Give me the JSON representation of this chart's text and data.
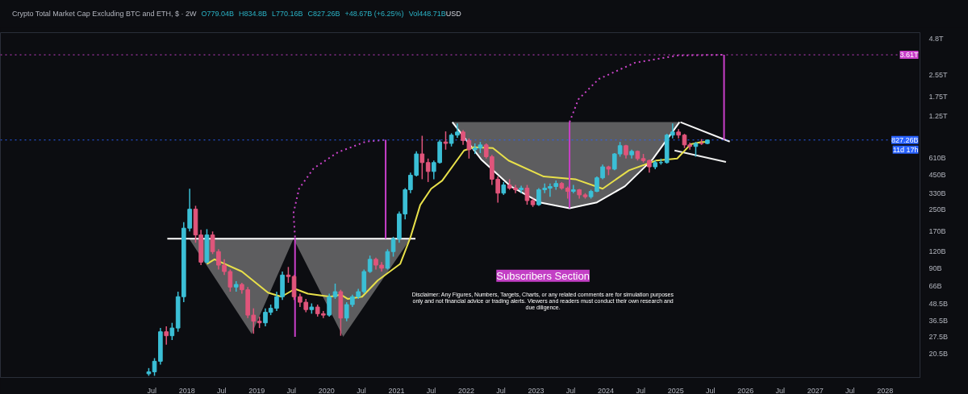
{
  "chart_data": {
    "type": "candlestick",
    "title": "Crypto Total Market Cap Excluding BTC and ETH, $ · 2W",
    "annotations": [
      "O779.04B",
      "H834.8B",
      "L770.16B",
      "C827.26B",
      "+48.67B (+6.25%)",
      "Vol448.71B",
      "USD",
      "11d 17h",
      "Subscribers Section",
      "Disclaimer: Any Figures, Numbers, Targets, Charts, or any related comments are for simulation purposes only and not financial advice or trading alerts. Viewers and readers must conduct their own research and due diligence."
    ],
    "log": true,
    "grid": false,
    "xlim": [
      "2015-05-01",
      "2028-07-01"
    ],
    "ylim": [
      13600000000.0,
      5300000000000.0
    ],
    "xticks": [
      {
        "value": "2017-07",
        "label": "Jul"
      },
      {
        "value": "2018-01",
        "label": "2018"
      },
      {
        "value": "2018-07",
        "label": "Jul"
      },
      {
        "value": "2019-01",
        "label": "2019"
      },
      {
        "value": "2019-07",
        "label": "Jul"
      },
      {
        "value": "2020-01",
        "label": "2020"
      },
      {
        "value": "2020-07",
        "label": "Jul"
      },
      {
        "value": "2021-01",
        "label": "2021"
      },
      {
        "value": "2021-07",
        "label": "Jul"
      },
      {
        "value": "2022-01",
        "label": "2022"
      },
      {
        "value": "2022-07",
        "label": "Jul"
      },
      {
        "value": "2023-01",
        "label": "2023"
      },
      {
        "value": "2023-07",
        "label": "Jul"
      },
      {
        "value": "2024-01",
        "label": "2024"
      },
      {
        "value": "2024-07",
        "label": "Jul"
      },
      {
        "value": "2025-01",
        "label": "2025"
      },
      {
        "value": "2025-07",
        "label": "Jul"
      },
      {
        "value": "2026-01",
        "label": "2026"
      },
      {
        "value": "2026-07",
        "label": "Jul"
      },
      {
        "value": "2027-01",
        "label": "2027"
      },
      {
        "value": "2027-07",
        "label": "Jul"
      },
      {
        "value": "2028-01",
        "label": "2028"
      }
    ],
    "yticks": [
      {
        "value": 4800000000000.0,
        "label": "4.8T"
      },
      {
        "value": 2550000000000.0,
        "label": "2.55T"
      },
      {
        "value": 1750000000000.0,
        "label": "1.75T"
      },
      {
        "value": 1250000000000.0,
        "label": "1.25T"
      },
      {
        "value": 610000000000.0,
        "label": "610B"
      },
      {
        "value": 450000000000.0,
        "label": "450B"
      },
      {
        "value": 330000000000.0,
        "label": "330B"
      },
      {
        "value": 250000000000.0,
        "label": "250B"
      },
      {
        "value": 170000000000.0,
        "label": "170B"
      },
      {
        "value": 120000000000.0,
        "label": "120B"
      },
      {
        "value": 90000000000.0,
        "label": "90B"
      },
      {
        "value": 66000000000.0,
        "label": "66B"
      },
      {
        "value": 48500000000.0,
        "label": "48.5B"
      },
      {
        "value": 36500000000.0,
        "label": "36.5B"
      },
      {
        "value": 27500000000.0,
        "label": "27.5B"
      },
      {
        "value": 20500000000.0,
        "label": "20.5B"
      }
    ],
    "ref_lines": [
      {
        "axis": "y",
        "value": 827260000000.0,
        "label": "827.26B",
        "color": "#2962ff",
        "line_style": "dotted"
      },
      {
        "axis": "y",
        "value": 3610000000000.0,
        "label": "3.61T",
        "color": "#c93fc9",
        "line_style": "dotted"
      }
    ],
    "x": [
      "2017-06-15",
      "2017-07-15",
      "2017-08-15",
      "2017-09-15",
      "2017-10-15",
      "2017-11-15",
      "2017-12-15",
      "2018-01-15",
      "2018-02-15",
      "2018-03-15",
      "2018-04-15",
      "2018-05-15",
      "2018-06-15",
      "2018-07-15",
      "2018-08-15",
      "2018-09-15",
      "2018-10-15",
      "2018-11-15",
      "2018-12-15",
      "2019-01-15",
      "2019-02-15",
      "2019-03-15",
      "2019-04-15",
      "2019-05-15",
      "2019-06-15",
      "2019-07-15",
      "2019-08-15",
      "2019-09-15",
      "2019-10-15",
      "2019-11-15",
      "2019-12-15",
      "2020-01-15",
      "2020-02-15",
      "2020-03-15",
      "2020-04-15",
      "2020-05-15",
      "2020-06-15",
      "2020-07-15",
      "2020-08-15",
      "2020-09-15",
      "2020-10-15",
      "2020-11-15",
      "2020-12-15",
      "2021-01-15",
      "2021-02-15",
      "2021-03-15",
      "2021-04-15",
      "2021-05-15",
      "2021-06-15",
      "2021-07-15",
      "2021-08-15",
      "2021-09-15",
      "2021-10-15",
      "2021-11-15",
      "2021-12-15",
      "2022-01-15",
      "2022-02-15",
      "2022-03-15",
      "2022-04-15",
      "2022-05-15",
      "2022-06-15",
      "2022-07-15",
      "2022-08-15",
      "2022-09-15",
      "2022-10-15",
      "2022-11-15",
      "2022-12-15",
      "2023-01-15",
      "2023-02-15",
      "2023-03-15",
      "2023-04-15",
      "2023-05-15",
      "2023-06-15",
      "2023-07-15",
      "2023-08-15",
      "2023-09-15",
      "2023-10-15",
      "2023-11-15",
      "2023-12-15",
      "2024-01-15",
      "2024-02-15",
      "2024-03-15",
      "2024-04-15",
      "2024-05-15",
      "2024-06-15",
      "2024-07-15",
      "2024-08-15",
      "2024-09-15",
      "2024-10-15",
      "2024-11-15",
      "2024-12-15",
      "2025-01-15",
      "2025-02-15",
      "2025-03-15",
      "2025-04-15",
      "2025-05-15",
      "2025-06-15"
    ],
    "ohlc": [
      [
        14500000000.0,
        16000000000.0,
        14000000000.0,
        15000000000.0
      ],
      [
        15000000000.0,
        19000000000.0,
        14000000000.0,
        18000000000.0
      ],
      [
        18000000000.0,
        32000000000.0,
        17000000000.0,
        30000000000.0
      ],
      [
        30000000000.0,
        33000000000.0,
        24000000000.0,
        28000000000.0
      ],
      [
        28000000000.0,
        35000000000.0,
        26000000000.0,
        32000000000.0
      ],
      [
        32000000000.0,
        60000000000.0,
        30000000000.0,
        55000000000.0
      ],
      [
        55000000000.0,
        200000000000.0,
        50000000000.0,
        180000000000.0
      ],
      [
        180000000000.0,
        356000000000.0,
        170000000000.0,
        250000000000.0
      ],
      [
        250000000000.0,
        265000000000.0,
        140000000000.0,
        160000000000.0
      ],
      [
        160000000000.0,
        175000000000.0,
        95000000000.0,
        100000000000.0
      ],
      [
        100000000000.0,
        177000000000.0,
        98000000000.0,
        160000000000.0
      ],
      [
        160000000000.0,
        170000000000.0,
        115000000000.0,
        120000000000.0
      ],
      [
        120000000000.0,
        125000000000.0,
        88000000000.0,
        95000000000.0
      ],
      [
        95000000000.0,
        105000000000.0,
        80000000000.0,
        85000000000.0
      ],
      [
        85000000000.0,
        88000000000.0,
        60000000000.0,
        65000000000.0
      ],
      [
        65000000000.0,
        72000000000.0,
        60000000000.0,
        68000000000.0
      ],
      [
        68000000000.0,
        70000000000.0,
        58000000000.0,
        62000000000.0
      ],
      [
        62000000000.0,
        65000000000.0,
        38000000000.0,
        40000000000.0
      ],
      [
        40000000000.0,
        45000000000.0,
        29000000000.0,
        36000000000.0
      ],
      [
        36000000000.0,
        39000000000.0,
        32000000000.0,
        35000000000.0
      ],
      [
        35000000000.0,
        45000000000.0,
        33000000000.0,
        42000000000.0
      ],
      [
        42000000000.0,
        48000000000.0,
        40000000000.0,
        45000000000.0
      ],
      [
        45000000000.0,
        60000000000.0,
        43000000000.0,
        55000000000.0
      ],
      [
        55000000000.0,
        85000000000.0,
        52000000000.0,
        80000000000.0
      ],
      [
        80000000000.0,
        92000000000.0,
        70000000000.0,
        78000000000.0
      ],
      [
        78000000000.0,
        80000000000.0,
        52000000000.0,
        55000000000.0
      ],
      [
        55000000000.0,
        58000000000.0,
        46000000000.0,
        50000000000.0
      ],
      [
        50000000000.0,
        53000000000.0,
        42000000000.0,
        44000000000.0
      ],
      [
        44000000000.0,
        49000000000.0,
        41000000000.0,
        46000000000.0
      ],
      [
        46000000000.0,
        48000000000.0,
        39000000000.0,
        41000000000.0
      ],
      [
        41000000000.0,
        43000000000.0,
        38000000000.0,
        40000000000.0
      ],
      [
        40000000000.0,
        58000000000.0,
        39000000000.0,
        55000000000.0
      ],
      [
        55000000000.0,
        69000000000.0,
        53000000000.0,
        60000000000.0
      ],
      [
        60000000000.0,
        62000000000.0,
        28000000000.0,
        38000000000.0
      ],
      [
        38000000000.0,
        50000000000.0,
        36000000000.0,
        48000000000.0
      ],
      [
        48000000000.0,
        57000000000.0,
        46000000000.0,
        55000000000.0
      ],
      [
        55000000000.0,
        63000000000.0,
        53000000000.0,
        60000000000.0
      ],
      [
        60000000000.0,
        88000000000.0,
        58000000000.0,
        85000000000.0
      ],
      [
        85000000000.0,
        112000000000.0,
        83000000000.0,
        105000000000.0
      ],
      [
        105000000000.0,
        108000000000.0,
        88000000000.0,
        95000000000.0
      ],
      [
        95000000000.0,
        100000000000.0,
        85000000000.0,
        90000000000.0
      ],
      [
        90000000000.0,
        125000000000.0,
        88000000000.0,
        120000000000.0
      ],
      [
        120000000000.0,
        155000000000.0,
        110000000000.0,
        150000000000.0
      ],
      [
        150000000000.0,
        240000000000.0,
        140000000000.0,
        230000000000.0
      ],
      [
        230000000000.0,
        360000000000.0,
        210000000000.0,
        350000000000.0
      ],
      [
        350000000000.0,
        470000000000.0,
        330000000000.0,
        450000000000.0
      ],
      [
        450000000000.0,
        680000000000.0,
        440000000000.0,
        650000000000.0
      ],
      [
        650000000000.0,
        890000000000.0,
        420000000000.0,
        560000000000.0
      ],
      [
        560000000000.0,
        600000000000.0,
        400000000000.0,
        480000000000.0
      ],
      [
        480000000000.0,
        580000000000.0,
        420000000000.0,
        560000000000.0
      ],
      [
        560000000000.0,
        830000000000.0,
        550000000000.0,
        800000000000.0
      ],
      [
        800000000000.0,
        960000000000.0,
        700000000000.0,
        780000000000.0
      ],
      [
        780000000000.0,
        930000000000.0,
        740000000000.0,
        900000000000.0
      ],
      [
        900000000000.0,
        1100000000000.0,
        860000000000.0,
        950000000000.0
      ],
      [
        950000000000.0,
        980000000000.0,
        760000000000.0,
        820000000000.0
      ],
      [
        820000000000.0,
        850000000000.0,
        600000000000.0,
        700000000000.0
      ],
      [
        700000000000.0,
        780000000000.0,
        650000000000.0,
        720000000000.0
      ],
      [
        720000000000.0,
        800000000000.0,
        660000000000.0,
        760000000000.0
      ],
      [
        760000000000.0,
        780000000000.0,
        600000000000.0,
        620000000000.0
      ],
      [
        620000000000.0,
        640000000000.0,
        380000000000.0,
        420000000000.0
      ],
      [
        420000000000.0,
        440000000000.0,
        280000000000.0,
        330000000000.0
      ],
      [
        330000000000.0,
        400000000000.0,
        320000000000.0,
        380000000000.0
      ],
      [
        380000000000.0,
        420000000000.0,
        350000000000.0,
        360000000000.0
      ],
      [
        360000000000.0,
        380000000000.0,
        330000000000.0,
        350000000000.0
      ],
      [
        350000000000.0,
        375000000000.0,
        330000000000.0,
        360000000000.0
      ],
      [
        360000000000.0,
        380000000000.0,
        270000000000.0,
        290000000000.0
      ],
      [
        290000000000.0,
        300000000000.0,
        260000000000.0,
        270000000000.0
      ],
      [
        270000000000.0,
        360000000000.0,
        265000000000.0,
        350000000000.0
      ],
      [
        350000000000.0,
        390000000000.0,
        330000000000.0,
        360000000000.0
      ],
      [
        360000000000.0,
        390000000000.0,
        310000000000.0,
        370000000000.0
      ],
      [
        370000000000.0,
        410000000000.0,
        350000000000.0,
        390000000000.0
      ],
      [
        390000000000.0,
        400000000000.0,
        350000000000.0,
        360000000000.0
      ],
      [
        360000000000.0,
        370000000000.0,
        300000000000.0,
        340000000000.0
      ],
      [
        340000000000.0,
        380000000000.0,
        330000000000.0,
        350000000000.0
      ],
      [
        350000000000.0,
        355000000000.0,
        300000000000.0,
        320000000000.0
      ],
      [
        320000000000.0,
        330000000000.0,
        300000000000.0,
        310000000000.0
      ],
      [
        310000000000.0,
        350000000000.0,
        300000000000.0,
        340000000000.0
      ],
      [
        340000000000.0,
        440000000000.0,
        335000000000.0,
        430000000000.0
      ],
      [
        430000000000.0,
        540000000000.0,
        420000000000.0,
        520000000000.0
      ],
      [
        520000000000.0,
        530000000000.0,
        450000000000.0,
        500000000000.0
      ],
      [
        500000000000.0,
        660000000000.0,
        490000000000.0,
        650000000000.0
      ],
      [
        650000000000.0,
        800000000000.0,
        620000000000.0,
        750000000000.0
      ],
      [
        750000000000.0,
        760000000000.0,
        600000000000.0,
        640000000000.0
      ],
      [
        640000000000.0,
        700000000000.0,
        600000000000.0,
        680000000000.0
      ],
      [
        680000000000.0,
        690000000000.0,
        580000000000.0,
        600000000000.0
      ],
      [
        600000000000.0,
        650000000000.0,
        560000000000.0,
        580000000000.0
      ],
      [
        580000000000.0,
        590000000000.0,
        470000000000.0,
        520000000000.0
      ],
      [
        520000000000.0,
        580000000000.0,
        500000000000.0,
        560000000000.0
      ],
      [
        560000000000.0,
        600000000000.0,
        540000000000.0,
        560000000000.0
      ],
      [
        560000000000.0,
        920000000000.0,
        550000000000.0,
        900000000000.0
      ],
      [
        900000000000.0,
        1100000000000.0,
        850000000000.0,
        950000000000.0
      ],
      [
        950000000000.0,
        1000000000000.0,
        850000000000.0,
        900000000000.0
      ],
      [
        900000000000.0,
        920000000000.0,
        720000000000.0,
        760000000000.0
      ],
      [
        760000000000.0,
        790000000000.0,
        700000000000.0,
        740000000000.0
      ],
      [
        740000000000.0,
        800000000000.0,
        620000000000.0,
        780000000000.0
      ],
      [
        780000000000.0,
        840000000000.0,
        760000000000.0,
        779040000000.0
      ],
      [
        779040000000.0,
        834800000000.0,
        770160000000.0,
        827260000000.0
      ]
    ],
    "series": [
      {
        "type": "line",
        "color": "#fdfdfd",
        "x": [
          "2021-10-20",
          "2022-03-20",
          "2022-08-20",
          "2023-01-20",
          "2023-06-25",
          "2023-11-15",
          "2024-04-10",
          "2024-09-01",
          "2025-01-20"
        ],
        "values": [
          1127000000000.0,
          591000000000.0,
          372000000000.0,
          281000000000.0,
          254000000000.0,
          281000000000.0,
          372000000000.0,
          591000000000.0,
          1127000000000.0
        ],
        "lower": [
          1127000000000.0,
          591000000000.0,
          372000000000.0,
          281000000000.0,
          254000000000.0,
          281000000000.0,
          372000000000.0,
          591000000000.0,
          1127000000000.0
        ],
        "upper": [
          1127000000000.0,
          1127000000000.0,
          1127000000000.0,
          1127000000000.0,
          1127000000000.0,
          1127000000000.0,
          1127000000000.0,
          1127000000000.0,
          1127000000000.0
        ]
      },
      {
        "type": "line",
        "color": "#ffffff",
        "x": [
          "2017-09-20",
          "2018-01-12",
          "2018-12-05",
          "2019-07-12",
          "2020-03-28",
          "2021-03-15",
          "2021-04-10"
        ],
        "values": [
          150000000000.0,
          150000000000.0,
          150000000000.0,
          150000000000.0,
          150000000000.0,
          150000000000.0,
          150000000000.0
        ],
        "lower": [
          150000000000.0,
          150000000000.0,
          28900000000.0,
          150000000000.0,
          27500000000.0,
          150000000000.0,
          150000000000.0
        ],
        "upper": [
          150000000000.0,
          150000000000.0,
          150000000000.0,
          150000000000.0,
          150000000000.0,
          150000000000.0,
          150000000000.0
        ]
      },
      {
        "type": "line",
        "color": "#f6f6f6",
        "x": [
          "2025-01-25",
          "2025-10-10"
        ],
        "values": [
          1127000000000.0,
          805000000000.0
        ]
      },
      {
        "type": "line",
        "color": "#eeeeee",
        "x": [
          "2024-12-25",
          "2025-09-20"
        ],
        "values": [
          690000000000.0,
          566000000000.0
        ]
      },
      {
        "type": "line",
        "color": "#e8e04a",
        "x": [
          "2018-04-15",
          "2018-05-25",
          "2018-10-15",
          "2019-03-01",
          "2019-05-10",
          "2019-07-20",
          "2019-09-25",
          "2020-01-20",
          "2020-03-15",
          "2020-04-20",
          "2020-07-05",
          "2020-09-25",
          "2021-01-20",
          "2021-03-15",
          "2021-05-05",
          "2021-07-01",
          "2021-08-28",
          "2021-12-20",
          "2022-02-10",
          "2022-05-20",
          "2022-08-10",
          "2023-02-10",
          "2023-07-25",
          "2023-12-15",
          "2024-05-01",
          "2024-09-20",
          "2025-01-08",
          "2025-03-20",
          "2025-05-15",
          "2025-06-15"
        ],
        "values": [
          97000000000.0,
          105000000000.0,
          85000000000.0,
          59000000000.0,
          55000000000.0,
          63000000000.0,
          58000000000.0,
          55000000000.0,
          57000000000.0,
          53000000000.0,
          55000000000.0,
          73000000000.0,
          97000000000.0,
          154000000000.0,
          269000000000.0,
          356000000000.0,
          410000000000.0,
          690000000000.0,
          730000000000.0,
          720000000000.0,
          580000000000.0,
          440000000000.0,
          420000000000.0,
          356000000000.0,
          490000000000.0,
          580000000000.0,
          600000000000.0,
          770000000000.0,
          800000000000.0,
          800000000000.0
        ]
      },
      {
        "type": "line",
        "color": "#c93fc9",
        "x": [
          "2019-07-20",
          "2019-07-20"
        ],
        "values": [
          152000000000.0,
          27500000000.0
        ]
      },
      {
        "type": "line",
        "color": "#c83fc9",
        "x": [
          "2020-11-05",
          "2020-11-05"
        ],
        "values": [
          150000000000.0,
          830000000000.0
        ]
      },
      {
        "type": "line",
        "color": "#c93fc7",
        "x": [
          "2023-06-25",
          "2023-06-25"
        ],
        "values": [
          1127000000000.0,
          254000000000.0
        ]
      },
      {
        "type": "line",
        "color": "#ca3fca",
        "x": [
          "2025-09-10",
          "2025-09-10"
        ],
        "values": [
          3610000000000.0,
          830000000000.0
        ]
      },
      {
        "type": "line",
        "color": "#cc44cc",
        "line_style": "dotted",
        "x": [
          "2019-07-20",
          "2019-07-12",
          "2019-08-10",
          "2019-10-25",
          "2020-03-01",
          "2020-07-25",
          "2020-11-05"
        ],
        "values": [
          154000000000.0,
          234000000000.0,
          356000000000.0,
          506000000000.0,
          670000000000.0,
          805000000000.0,
          830000000000.0
        ]
      },
      {
        "type": "line",
        "color": "#cd45cb",
        "line_style": "dotted",
        "x": [
          "2023-06-25",
          "2023-08-10",
          "2023-11-25",
          "2024-06-01",
          "2025-01-12",
          "2025-09-10"
        ],
        "values": [
          1127000000000.0,
          1671000000000.0,
          2377000000000.0,
          3148000000000.0,
          3573000000000.0,
          3610000000000.0
        ]
      }
    ]
  }
}
